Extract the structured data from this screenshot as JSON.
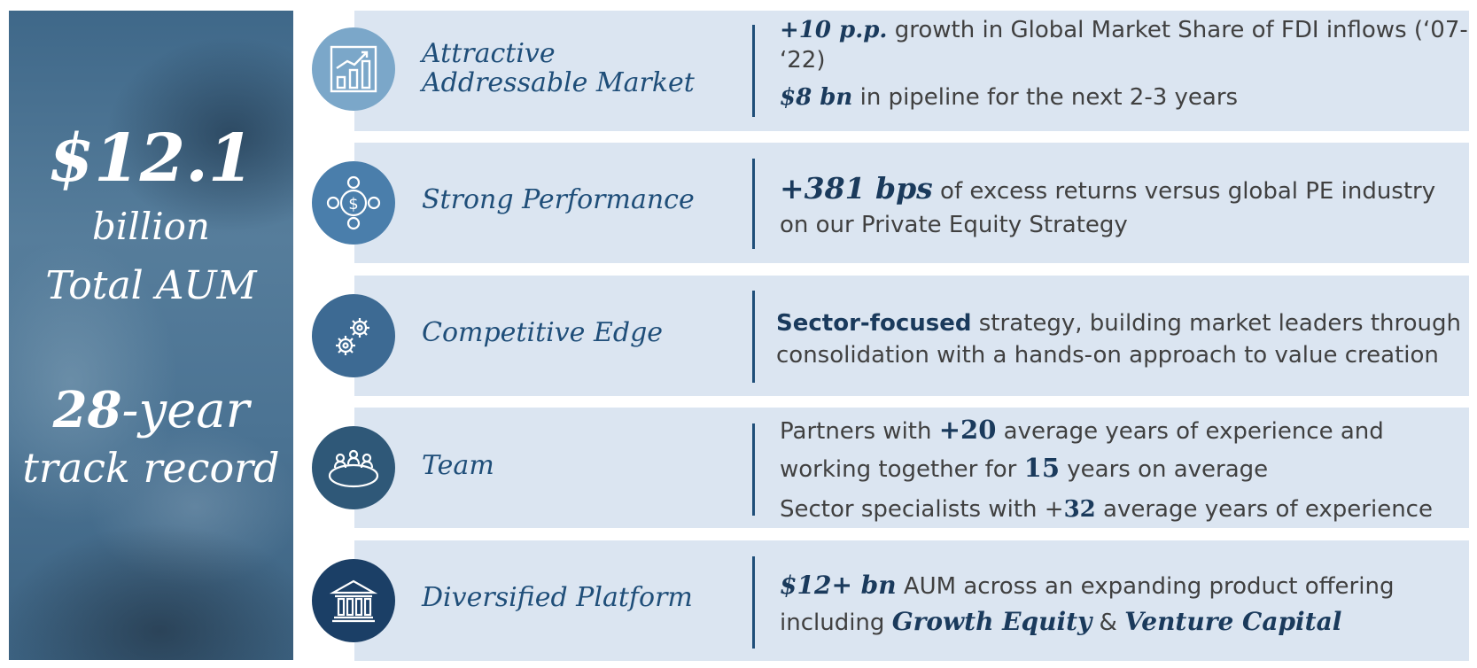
{
  "left_panel": {
    "aum_amount": "$12.1",
    "aum_unit": "billion",
    "aum_label": "Total AUM",
    "track_years_num": "28",
    "track_years_suffix": "-year",
    "track_label": "track record"
  },
  "colors": {
    "row_background": "#dbe5f1",
    "title_text": "#1f4e79",
    "highlight_text": "#1a3a5c",
    "body_text": "#404040",
    "circle_market": "#7ba7c9",
    "circle_performance": "#4a7eab",
    "circle_competitive": "#3d6a93",
    "circle_team": "#2f5878",
    "circle_platform": "#1b3f66"
  },
  "rows": [
    {
      "title": "Attractive Addressable Market",
      "icon": "bar-chart-growth-icon",
      "line1_highlight": "+10 p.p.",
      "line1_text": " growth in Global Market Share of FDI inflows (‘07- ‘22)",
      "line2_highlight": "$8 bn",
      "line2_text": " in pipeline for the next 2-3 years"
    },
    {
      "title": "Strong Performance",
      "icon": "dollar-network-icon",
      "highlight": "+381 bps",
      "text": " of excess returns versus global PE industry on our Private Equity Strategy"
    },
    {
      "title": "Competitive Edge",
      "icon": "gears-icon",
      "highlight": "Sector-focused",
      "text": " strategy, building market leaders through consolidation with a hands-on approach to value creation"
    },
    {
      "title": "Team",
      "icon": "team-table-icon",
      "line1_prefix": "Partners with ",
      "line1_highlight": "+20",
      "line1_suffix": " average years of experience and working together for ",
      "line1_highlight2": "15",
      "line1_suffix2": " years on average",
      "line2_prefix": "Sector specialists with +",
      "line2_highlight": "32",
      "line2_suffix": " average years of experience"
    },
    {
      "title": "Diversified Platform",
      "icon": "institution-building-icon",
      "highlight": "$12+ bn",
      "text1": " AUM across an expanding product offering including ",
      "highlight2": "Growth Equity",
      "text2": " & ",
      "highlight3": "Venture Capital"
    }
  ]
}
